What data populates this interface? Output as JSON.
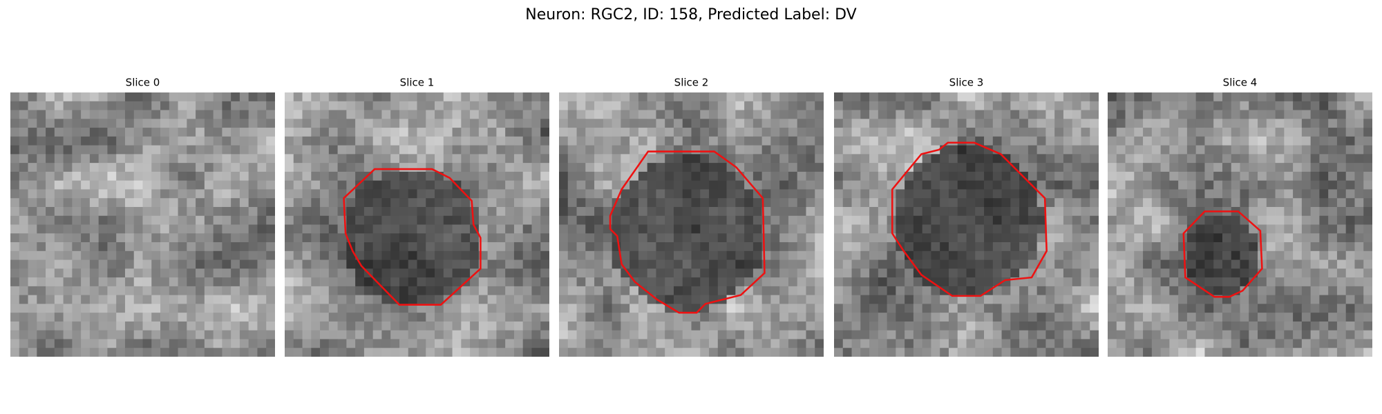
{
  "title": "Neuron: RGC2, ID: 158, Predicted Label: DV",
  "panels": [
    {
      "title": "Slice 0"
    },
    {
      "title": "Slice 1"
    },
    {
      "title": "Slice 2"
    },
    {
      "title": "Slice 3"
    },
    {
      "title": "Slice 4"
    }
  ]
}
